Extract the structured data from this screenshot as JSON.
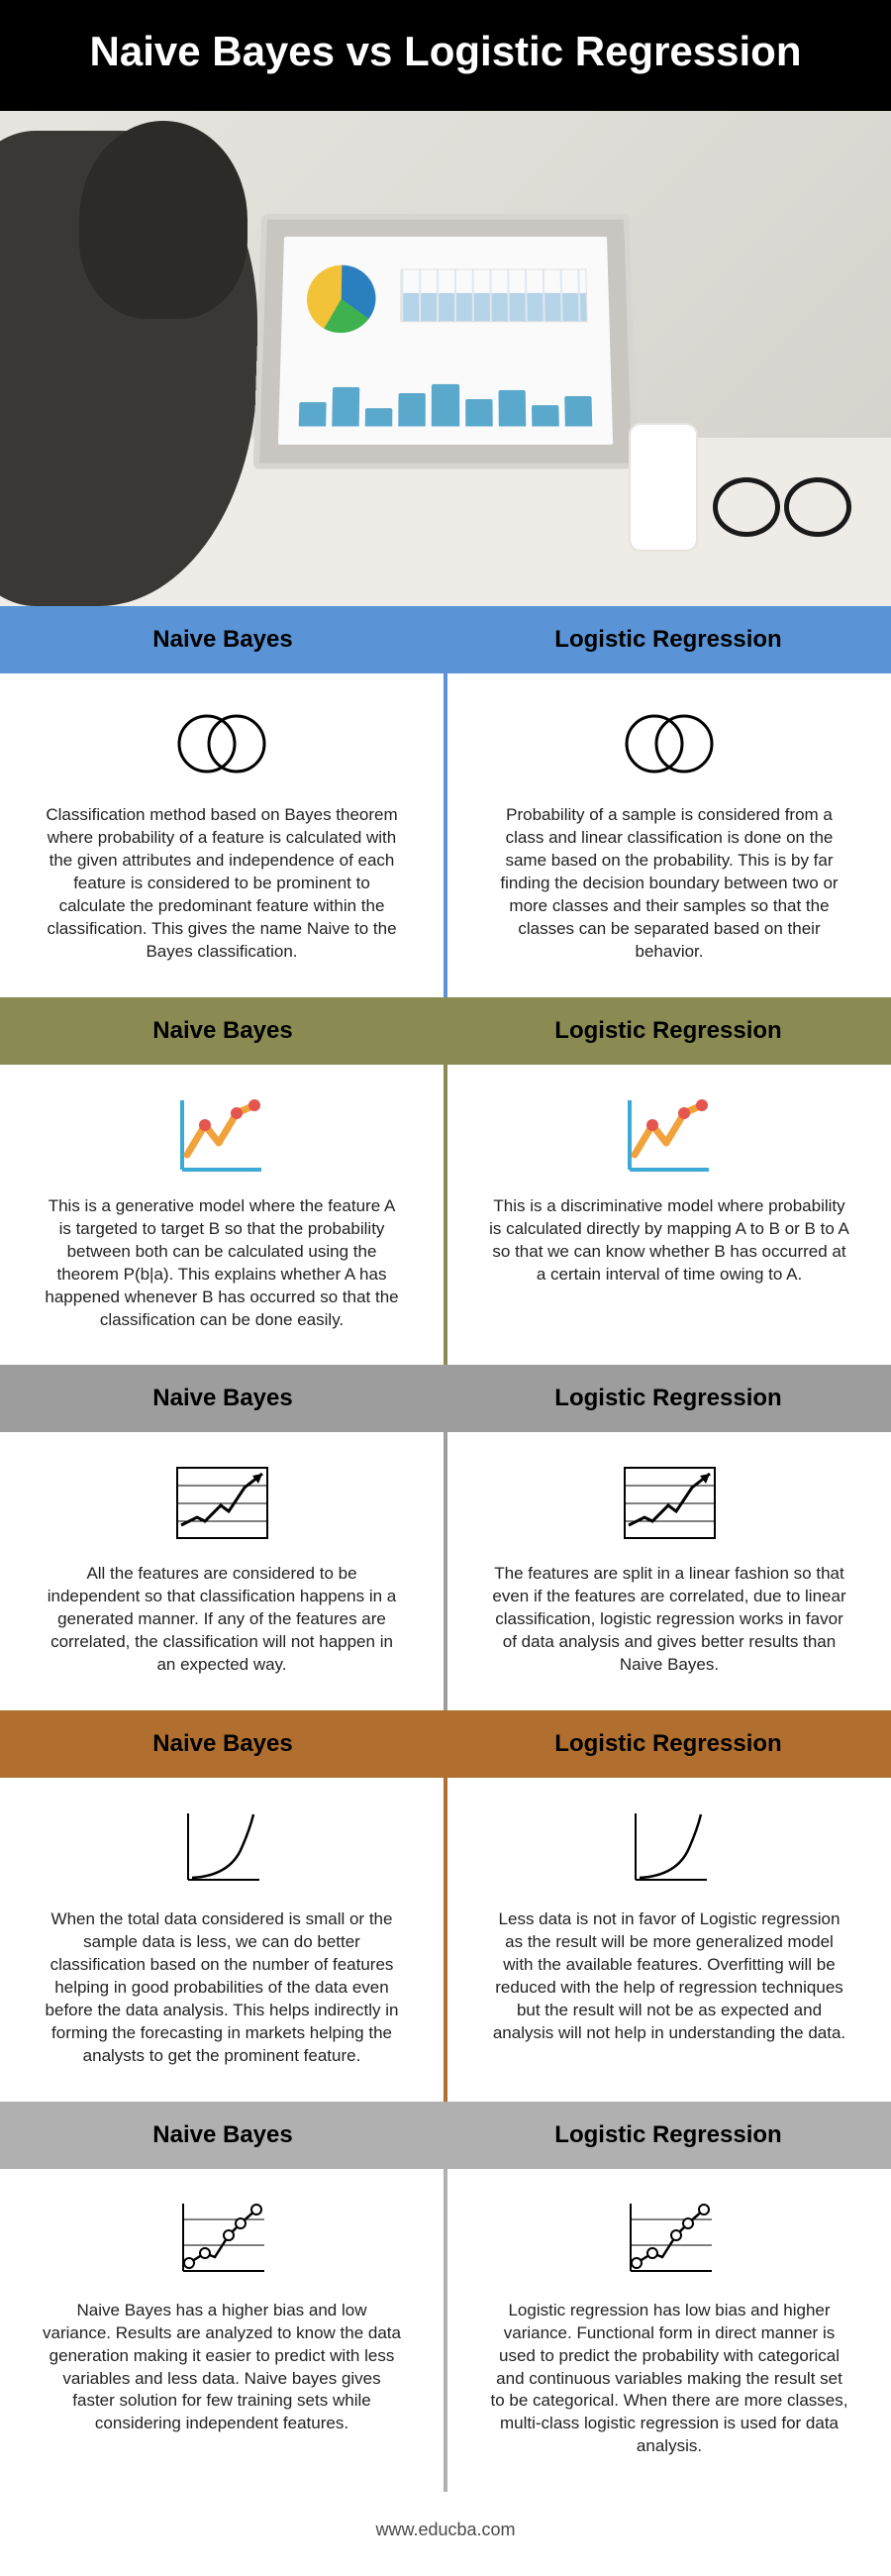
{
  "title": "Naive Bayes vs Logistic Regression",
  "footer": "www.educba.com",
  "columns": {
    "left": "Naive Bayes",
    "right": "Logistic Regression"
  },
  "sections": [
    {
      "header_bg": "#5a94d6",
      "divider": "#5a94d6",
      "icon": "venn",
      "left_text": "Classification method based on Bayes theorem where probability of a feature is calculated with the given attributes and independence of each feature is considered to be prominent to calculate the predominant feature within the classification. This gives the name Naive to the Bayes classification.",
      "right_text": "Probability of a sample is considered from a class and linear classification is done on the same based on the probability. This is by far finding the decision boundary between two or more classes and their samples so that the classes can be separated based on their behavior."
    },
    {
      "header_bg": "#8a8b52",
      "divider": "#8a8b52",
      "icon": "zigzag",
      "left_text": "This is a generative model where the feature A is targeted to target B so that the probability between both can be calculated using the theorem P(b|a). This explains whether A has happened whenever B has occurred so that the classification can be done easily.",
      "right_text": "This is a discriminative model where probability is calculated directly by mapping A to B or B to A so that we can know whether B has occurred at a certain interval of time owing to A."
    },
    {
      "header_bg": "#9d9d9d",
      "divider": "#9d9d9d",
      "icon": "grid-up",
      "left_text": "All the features are considered to be independent so that classification happens in a generated manner. If any of the features are correlated, the classification will not happen in an expected way.",
      "right_text": "The features are split in a linear fashion so that even if the features are correlated, due to linear classification, logistic regression works in favor of data analysis and gives better results than Naive Bayes."
    },
    {
      "header_bg": "#b06f2e",
      "divider": "#b06f2e",
      "icon": "curve",
      "left_text": "When the total data considered is small or the sample data is less, we can do better classification based on the number of features helping in good probabilities of the data even before the data analysis. This helps indirectly in forming the forecasting in markets helping the analysts to get the prominent feature.",
      "right_text": "Less data is not in favor of Logistic regression as the result will be more generalized model with the available features. Overfitting will be reduced with the help of regression techniques but the result will not be as expected and analysis will not help in understanding the data."
    },
    {
      "header_bg": "#b0b0b0",
      "divider": "#b0b0b0",
      "icon": "scatter",
      "left_text": "Naive Bayes has a higher bias and low variance. Results are analyzed to know the data generation making it easier to predict with less variables and less data. Naive bayes gives faster solution for few training sets while considering independent features.",
      "right_text": "Logistic regression has low bias and higher variance. Functional form in direct manner is used to predict the probability with categorical and continuous variables making the result set to be categorical. When there are more classes, multi-class logistic regression is used for data analysis."
    }
  ]
}
